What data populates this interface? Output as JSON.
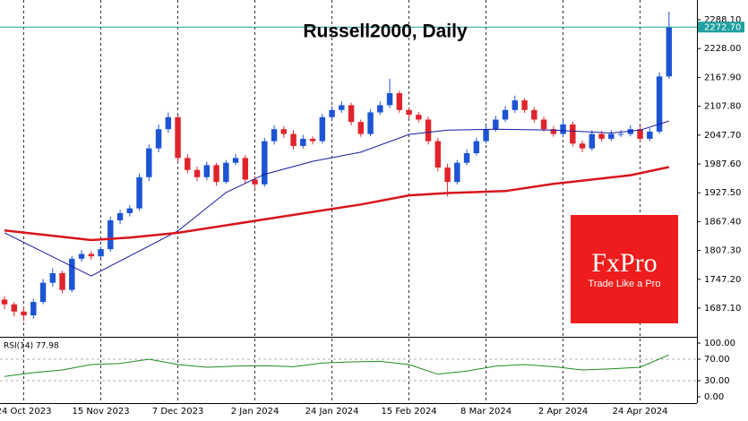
{
  "chart_data": [
    {
      "type": "candlestick",
      "title": "Russell2000, Daily",
      "open": [
        1705,
        1695,
        1680,
        1672,
        1700,
        1740,
        1760,
        1725,
        1790,
        1800,
        1795,
        1810,
        1870,
        1885,
        1895,
        1960,
        2020,
        2060,
        2085,
        2000,
        1975,
        1960,
        1985,
        1950,
        1990,
        2000,
        1955,
        1945,
        2035,
        2060,
        2050,
        2025,
        2040,
        2035,
        2085,
        2100,
        2110,
        2075,
        2050,
        2095,
        2110,
        2135,
        2100,
        2090,
        2080,
        2035,
        1980,
        1950,
        1990,
        2010,
        2035,
        2060,
        2080,
        2100,
        2120,
        2100,
        2080,
        2060,
        2050,
        2070,
        2030,
        2020,
        2050,
        2040,
        2050,
        2050,
        2060,
        2040,
        2055,
        2170
      ],
      "high": [
        1712,
        1700,
        1690,
        1706,
        1748,
        1770,
        1765,
        1796,
        1808,
        1806,
        1815,
        1878,
        1892,
        1902,
        1968,
        2028,
        2070,
        2095,
        2088,
        2008,
        1982,
        1992,
        1990,
        1996,
        2008,
        2006,
        1962,
        2042,
        2068,
        2066,
        2058,
        2048,
        2045,
        2092,
        2108,
        2118,
        2115,
        2080,
        2102,
        2118,
        2165,
        2140,
        2106,
        2096,
        2086,
        2042,
        1988,
        1996,
        2018,
        2042,
        2068,
        2088,
        2108,
        2130,
        2125,
        2106,
        2086,
        2066,
        2078,
        2076,
        2036,
        2058,
        2056,
        2058,
        2058,
        2068,
        2066,
        2062,
        2178,
        2305
      ],
      "low": [
        1685,
        1670,
        1660,
        1665,
        1695,
        1732,
        1718,
        1720,
        1784,
        1788,
        1790,
        1805,
        1862,
        1878,
        1890,
        1952,
        2012,
        2052,
        1992,
        1968,
        1952,
        1954,
        1942,
        1946,
        1985,
        1948,
        1938,
        1940,
        2028,
        2042,
        2018,
        2020,
        2028,
        2030,
        2078,
        2094,
        2068,
        2044,
        2045,
        2090,
        2104,
        2094,
        2082,
        2074,
        2028,
        1972,
        1920,
        1945,
        1985,
        2005,
        2030,
        2055,
        2075,
        2094,
        2094,
        2074,
        2055,
        2044,
        2045,
        2024,
        2012,
        2015,
        2034,
        2035,
        2044,
        2045,
        2034,
        2035,
        2050,
        2165
      ],
      "close": [
        1695,
        1680,
        1672,
        1700,
        1740,
        1760,
        1725,
        1790,
        1800,
        1795,
        1810,
        1870,
        1885,
        1895,
        1960,
        2020,
        2060,
        2085,
        2000,
        1975,
        1960,
        1985,
        1950,
        1990,
        2000,
        1955,
        1945,
        2035,
        2060,
        2050,
        2025,
        2040,
        2035,
        2085,
        2100,
        2110,
        2075,
        2050,
        2095,
        2110,
        2135,
        2100,
        2090,
        2080,
        2035,
        1980,
        1950,
        1990,
        2010,
        2035,
        2060,
        2080,
        2100,
        2120,
        2100,
        2080,
        2060,
        2050,
        2070,
        2030,
        2020,
        2050,
        2040,
        2050,
        2050,
        2060,
        2040,
        2055,
        2170,
        2272.7
      ],
      "up_color": "#1c54d4",
      "down_color": "#e0242c",
      "overlays": [
        {
          "color": "#1818a0",
          "line_width": 1,
          "x": [
            0,
            9,
            18,
            23,
            27,
            32,
            37,
            42,
            46,
            51,
            57,
            63,
            66,
            69
          ],
          "values": [
            1844,
            1754,
            1848,
            1928,
            1966,
            1993,
            2012,
            2049,
            2058,
            2060,
            2058,
            2052,
            2058,
            2077
          ]
        },
        {
          "color": "#d8141c",
          "line_width": 2.5,
          "x": [
            0,
            9,
            13,
            18,
            27,
            37,
            42,
            46,
            52,
            57,
            65,
            69
          ],
          "values": [
            1849,
            1829,
            1834,
            1844,
            1872,
            1903,
            1922,
            1927,
            1931,
            1946,
            1964,
            1981
          ]
        }
      ],
      "last_price": {
        "value": 2272.7,
        "label": "2272.70"
      },
      "last_price_color": "#20a0a0",
      "xlim": [
        -0.47,
        71.9
      ],
      "ylim": [
        1629.2,
        2329.2
      ],
      "yticks": [
        {
          "value": 2288.1,
          "label": "2288.10"
        },
        {
          "value": 2228,
          "label": "2228.00"
        },
        {
          "value": 2167.9,
          "label": "2167.90"
        },
        {
          "value": 2107.8,
          "label": "2107.80"
        },
        {
          "value": 2047.7,
          "label": "2047.70"
        },
        {
          "value": 1987.6,
          "label": "1987.60"
        },
        {
          "value": 1927.5,
          "label": "1927.50"
        },
        {
          "value": 1867.4,
          "label": "1867.40"
        },
        {
          "value": 1807.3,
          "label": "1807.30"
        },
        {
          "value": 1747.2,
          "label": "1747.20"
        },
        {
          "value": 1687.1,
          "label": "1687.10"
        }
      ],
      "xticks": [
        {
          "value": 2,
          "label": "24 Oct 2023"
        },
        {
          "value": 10,
          "label": "15 Nov 2023"
        },
        {
          "value": 18,
          "label": "7 Dec 2023"
        },
        {
          "value": 26,
          "label": "2 Jan 2024"
        },
        {
          "value": 34,
          "label": "24 Jan 2024"
        },
        {
          "value": 42,
          "label": "15 Feb 2024"
        },
        {
          "value": 50,
          "label": "8 Mar 2024"
        },
        {
          "value": 58,
          "label": "2 Apr 2024"
        },
        {
          "value": 66,
          "label": "24 Apr 2024"
        }
      ],
      "grid": true
    },
    {
      "type": "line",
      "label": "RSI(14) 77.98",
      "color": "#1e8a1e",
      "x": [
        0,
        3,
        6,
        9,
        12,
        15,
        18,
        21,
        24,
        27,
        30,
        33,
        36,
        39,
        42,
        45,
        48,
        51,
        54,
        57,
        60,
        63,
        66,
        69
      ],
      "values": [
        38,
        45,
        50,
        60,
        62,
        70,
        60,
        55,
        57,
        58,
        56,
        63,
        65,
        66,
        60,
        42,
        48,
        57,
        60,
        56,
        50,
        52,
        55,
        77.98
      ],
      "ylim": [
        -11.7,
        110
      ],
      "yticks": [
        {
          "value": 100,
          "label": "100.00"
        },
        {
          "value": 70,
          "label": "70.00"
        },
        {
          "value": 30,
          "label": "30.00"
        },
        {
          "value": 0,
          "label": "0.00"
        }
      ],
      "levels": [
        70,
        30
      ]
    }
  ],
  "logo": {
    "brand": "FxPro",
    "tagline": "Trade Like a Pro"
  }
}
